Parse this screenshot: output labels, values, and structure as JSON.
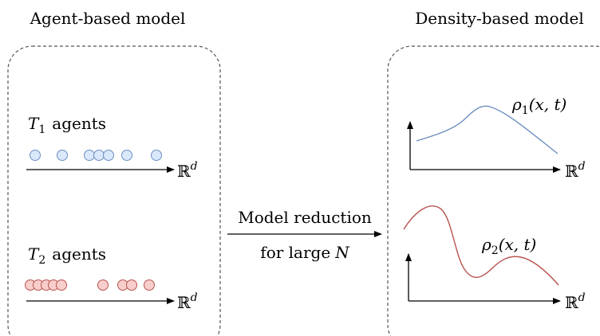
{
  "left_panel": {
    "title": "Agent-based model",
    "groups": [
      {
        "symbol": "T",
        "sub": "1",
        "suffix": "agents",
        "axis_label": "ℝ",
        "axis_sup": "d",
        "agent_fill": "#dae8fc",
        "agent_stroke": "#6c8ebf",
        "agent_count": 7
      },
      {
        "symbol": "T",
        "sub": "2",
        "suffix": "agents",
        "axis_label": "ℝ",
        "axis_sup": "d",
        "agent_fill": "#f8cecc",
        "agent_stroke": "#b85450",
        "agent_count": 9
      }
    ]
  },
  "middle": {
    "line1": "Model reduction",
    "line2_prefix": "for large",
    "line2_var": "N"
  },
  "right_panel": {
    "title": "Density-based model",
    "curves": [
      {
        "name": "ρ",
        "sub": "1",
        "args": "(x, t)",
        "color": "#6c8ebf",
        "axis_label": "ℝ",
        "axis_sup": "d"
      },
      {
        "name": "ρ",
        "sub": "2",
        "args": "(x, t)",
        "color": "#b85450",
        "axis_label": "ℝ",
        "axis_sup": "d"
      }
    ]
  },
  "colors": {
    "panel_border": "#555555",
    "axis": "#000000"
  }
}
